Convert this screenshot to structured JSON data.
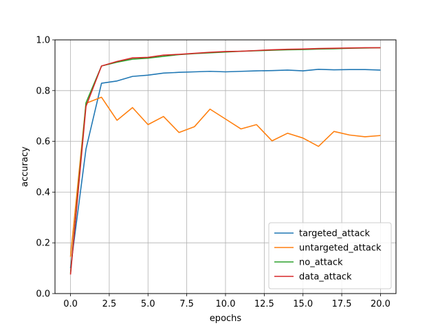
{
  "chart_data": {
    "type": "line",
    "title": "",
    "xlabel": "epochs",
    "ylabel": "accuracy",
    "xlim": [
      -1,
      21
    ],
    "ylim": [
      0,
      1
    ],
    "grid": true,
    "legend_position": "lower-right",
    "x_ticks": [
      "0.0",
      "2.5",
      "5.0",
      "7.5",
      "10.0",
      "12.5",
      "15.0",
      "17.5",
      "20.0"
    ],
    "y_ticks": [
      "0.0",
      "0.2",
      "0.4",
      "0.6",
      "0.8",
      "1.0"
    ],
    "x": [
      0,
      1,
      2,
      3,
      4,
      5,
      6,
      7,
      8,
      9,
      10,
      11,
      12,
      13,
      14,
      15,
      16,
      17,
      18,
      19,
      20
    ],
    "series": [
      {
        "name": "targeted_attack",
        "color": "#1f77b4",
        "values": [
          0.1,
          0.57,
          0.829,
          0.838,
          0.856,
          0.861,
          0.869,
          0.872,
          0.874,
          0.876,
          0.874,
          0.876,
          0.878,
          0.879,
          0.881,
          0.878,
          0.884,
          0.882,
          0.883,
          0.883,
          0.881
        ]
      },
      {
        "name": "untargeted_attack",
        "color": "#ff7f0e",
        "values": [
          0.145,
          0.75,
          0.774,
          0.683,
          0.733,
          0.666,
          0.698,
          0.635,
          0.658,
          0.727,
          0.688,
          0.649,
          0.666,
          0.602,
          0.632,
          0.613,
          0.58,
          0.639,
          0.625,
          0.618,
          0.623
        ]
      },
      {
        "name": "no_attack",
        "color": "#2ca02c",
        "values": [
          0.08,
          0.752,
          0.897,
          0.912,
          0.924,
          0.928,
          0.935,
          0.942,
          0.946,
          0.949,
          0.952,
          0.955,
          0.957,
          0.959,
          0.961,
          0.962,
          0.964,
          0.965,
          0.967,
          0.968,
          0.969
        ]
      },
      {
        "name": "data_attack",
        "color": "#d62728",
        "values": [
          0.075,
          0.738,
          0.897,
          0.915,
          0.929,
          0.931,
          0.94,
          0.943,
          0.947,
          0.951,
          0.954,
          0.955,
          0.958,
          0.961,
          0.963,
          0.964,
          0.966,
          0.967,
          0.968,
          0.969,
          0.969
        ]
      }
    ]
  }
}
